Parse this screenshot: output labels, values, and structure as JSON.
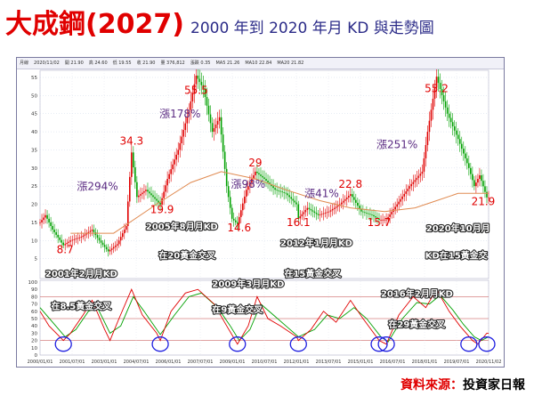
{
  "header": {
    "title": "大成鋼(2027)",
    "subtitle": "2000 年到 2020 年月 KD 與走勢圖"
  },
  "toolbar": {
    "items": [
      "月線",
      "2020/11/02",
      "開 21.90",
      "高 24.60",
      "低 19.55",
      "收 21.90",
      "量 376,812",
      "漲跌 0.35",
      "MA5 21.26",
      "MA10 22.84",
      "MA20 21.82"
    ]
  },
  "colors": {
    "title": "#e00000",
    "subtitle": "#2b2b88",
    "up_candle": "#e00000",
    "down_candle": "#00a000",
    "ma_line": "#e08a50",
    "k_line": "#e00000",
    "d_line": "#00a000",
    "annotation_price": "#e00000",
    "annotation_pct": "#5a2a82",
    "annotation_event": "#ffffff",
    "circle": "#2020e0"
  },
  "chart_data": {
    "type": "line",
    "title": "大成鋼(2027) 2000 年到 2020 年月 KD 與走勢圖",
    "price_axis": {
      "ylim": [
        0,
        55
      ],
      "ticks": [
        "55",
        "50",
        "45",
        "40",
        "35",
        "30",
        "25",
        "20",
        "15",
        "10",
        "5"
      ]
    },
    "kd_axis": {
      "ylim": [
        0,
        100
      ],
      "ticks": [
        "100",
        "90",
        "80",
        "70",
        "60",
        "50",
        "40",
        "30",
        "20",
        "10",
        "0"
      ],
      "reference_lines": [
        80,
        50,
        20
      ]
    },
    "x_ticks": [
      "2000/01/01",
      "2001/07/01",
      "2003/01/01",
      "2004/07/01",
      "2006/01/01",
      "2007/07/01",
      "2009/01/01",
      "2010/07/01",
      "2012/01/01",
      "2013/07/01",
      "2015/01/01",
      "2016/07/01",
      "2018/01/01",
      "2019/07/01",
      "2020/11/02"
    ],
    "x_range": [
      "2000-01",
      "2020-11"
    ],
    "price_path": [
      [
        "2000-01",
        15
      ],
      [
        "2000-04",
        17
      ],
      [
        "2000-08",
        13
      ],
      [
        "2001-02",
        8.7
      ],
      [
        "2001-06",
        10
      ],
      [
        "2001-12",
        11
      ],
      [
        "2002-06",
        13
      ],
      [
        "2002-10",
        10
      ],
      [
        "2003-03",
        7
      ],
      [
        "2003-08",
        9
      ],
      [
        "2004-01",
        14
      ],
      [
        "2004-04",
        34.3
      ],
      [
        "2004-07",
        22
      ],
      [
        "2004-12",
        24
      ],
      [
        "2005-06",
        21
      ],
      [
        "2005-08",
        19.9
      ],
      [
        "2005-12",
        27
      ],
      [
        "2006-06",
        35
      ],
      [
        "2006-12",
        46
      ],
      [
        "2007-04",
        55.5
      ],
      [
        "2007-08",
        52
      ],
      [
        "2008-01",
        40
      ],
      [
        "2008-05",
        44
      ],
      [
        "2008-09",
        25
      ],
      [
        "2008-12",
        16
      ],
      [
        "2009-03",
        14.6
      ],
      [
        "2009-08",
        24
      ],
      [
        "2010-01",
        29
      ],
      [
        "2010-06",
        27
      ],
      [
        "2010-12",
        24
      ],
      [
        "2011-06",
        23
      ],
      [
        "2011-12",
        20
      ],
      [
        "2012-01",
        16.1
      ],
      [
        "2012-06",
        19
      ],
      [
        "2012-12",
        17
      ],
      [
        "2013-06",
        18
      ],
      [
        "2013-12",
        20
      ],
      [
        "2014-06",
        22.8
      ],
      [
        "2014-12",
        18
      ],
      [
        "2015-06",
        17
      ],
      [
        "2015-10",
        15.7
      ],
      [
        "2016-02",
        15.8
      ],
      [
        "2016-08",
        20
      ],
      [
        "2017-03",
        25
      ],
      [
        "2017-10",
        29
      ],
      [
        "2018-01",
        40
      ],
      [
        "2018-06",
        55.2
      ],
      [
        "2018-12",
        45
      ],
      [
        "2019-06",
        38
      ],
      [
        "2019-12",
        30
      ],
      [
        "2020-03",
        25
      ],
      [
        "2020-06",
        28
      ],
      [
        "2020-10",
        21.9
      ],
      [
        "2020-11",
        21.9
      ]
    ],
    "ma_path": [
      [
        "2001-06",
        12
      ],
      [
        "2003-06",
        12
      ],
      [
        "2005-06",
        20
      ],
      [
        "2007-01",
        26
      ],
      [
        "2008-06",
        29
      ],
      [
        "2010-01",
        27
      ],
      [
        "2011-06",
        24
      ],
      [
        "2013-01",
        21
      ],
      [
        "2014-06",
        19
      ],
      [
        "2016-01",
        18
      ],
      [
        "2017-06",
        19
      ],
      [
        "2018-06",
        21
      ],
      [
        "2019-06",
        23
      ],
      [
        "2020-11",
        23
      ]
    ],
    "k_path": [
      [
        "2000-01",
        60
      ],
      [
        "2000-06",
        40
      ],
      [
        "2001-02",
        20
      ],
      [
        "2001-06",
        30
      ],
      [
        "2002-01",
        55
      ],
      [
        "2002-06",
        75
      ],
      [
        "2003-01",
        35
      ],
      [
        "2003-04",
        20
      ],
      [
        "2003-09",
        50
      ],
      [
        "2004-04",
        90
      ],
      [
        "2004-10",
        55
      ],
      [
        "2005-06",
        30
      ],
      [
        "2005-08",
        20
      ],
      [
        "2006-02",
        60
      ],
      [
        "2006-10",
        85
      ],
      [
        "2007-05",
        90
      ],
      [
        "2008-02",
        70
      ],
      [
        "2008-09",
        40
      ],
      [
        "2009-03",
        15
      ],
      [
        "2009-09",
        40
      ],
      [
        "2010-02",
        80
      ],
      [
        "2010-08",
        50
      ],
      [
        "2011-03",
        40
      ],
      [
        "2011-12",
        25
      ],
      [
        "2012-01",
        20
      ],
      [
        "2012-08",
        35
      ],
      [
        "2013-03",
        60
      ],
      [
        "2013-10",
        45
      ],
      [
        "2014-06",
        75
      ],
      [
        "2015-01",
        50
      ],
      [
        "2015-10",
        20
      ],
      [
        "2016-02",
        15
      ],
      [
        "2016-09",
        55
      ],
      [
        "2017-05",
        80
      ],
      [
        "2017-12",
        65
      ],
      [
        "2018-06",
        90
      ],
      [
        "2019-01",
        60
      ],
      [
        "2019-07",
        40
      ],
      [
        "2020-02",
        20
      ],
      [
        "2020-05",
        15
      ],
      [
        "2020-10",
        30
      ],
      [
        "2020-11",
        30
      ]
    ],
    "d_path": [
      [
        "2000-01",
        65
      ],
      [
        "2000-08",
        45
      ],
      [
        "2001-03",
        25
      ],
      [
        "2001-09",
        35
      ],
      [
        "2002-04",
        60
      ],
      [
        "2002-09",
        65
      ],
      [
        "2003-04",
        30
      ],
      [
        "2003-10",
        40
      ],
      [
        "2004-05",
        80
      ],
      [
        "2004-11",
        60
      ],
      [
        "2005-08",
        28
      ],
      [
        "2006-04",
        55
      ],
      [
        "2006-12",
        80
      ],
      [
        "2007-07",
        85
      ],
      [
        "2008-04",
        65
      ],
      [
        "2008-11",
        40
      ],
      [
        "2009-04",
        20
      ],
      [
        "2009-10",
        35
      ],
      [
        "2010-04",
        70
      ],
      [
        "2010-11",
        55
      ],
      [
        "2011-06",
        40
      ],
      [
        "2012-01",
        25
      ],
      [
        "2012-10",
        35
      ],
      [
        "2013-05",
        55
      ],
      [
        "2013-12",
        50
      ],
      [
        "2014-08",
        65
      ],
      [
        "2015-03",
        50
      ],
      [
        "2015-11",
        25
      ],
      [
        "2016-03",
        18
      ],
      [
        "2016-11",
        50
      ],
      [
        "2017-07",
        72
      ],
      [
        "2018-02",
        70
      ],
      [
        "2018-08",
        82
      ],
      [
        "2019-03",
        62
      ],
      [
        "2019-09",
        42
      ],
      [
        "2020-03",
        25
      ],
      [
        "2020-07",
        20
      ],
      [
        "2020-11",
        25
      ]
    ],
    "circles": [
      "2001-02",
      "2005-08",
      "2009-03",
      "2012-01",
      "2015-10",
      "2016-02",
      "2019-12",
      "2020-10"
    ],
    "price_labels": [
      {
        "text": "8.7",
        "x": "2001-03",
        "y": 6.5
      },
      {
        "text": "34.3",
        "x": "2004-04",
        "y": 36.5
      },
      {
        "text": "19.9",
        "x": "2005-09",
        "y": 17.5
      },
      {
        "text": "55.5",
        "x": "2007-04",
        "y": 50.5
      },
      {
        "text": "14.6",
        "x": "2009-04",
        "y": 12.5
      },
      {
        "text": "29",
        "x": "2010-01",
        "y": 30.5
      },
      {
        "text": "16.1",
        "x": "2012-01",
        "y": 14
      },
      {
        "text": "22.8",
        "x": "2014-06",
        "y": 24.5
      },
      {
        "text": "15.7",
        "x": "2015-10",
        "y": 14
      },
      {
        "text": "55.2",
        "x": "2018-06",
        "y": 51
      },
      {
        "text": "21.9",
        "x": "2020-08",
        "y": 19.8
      }
    ],
    "pct_labels": [
      {
        "text": "漲294%",
        "x": "2002-09",
        "y": 24
      },
      {
        "text": "漲178%",
        "x": "2006-07",
        "y": 44
      },
      {
        "text": "漲98%",
        "x": "2009-09",
        "y": 24.5
      },
      {
        "text": "漲41%",
        "x": "2013-02",
        "y": 22
      },
      {
        "text": "漲251%",
        "x": "2016-08",
        "y": 35.5
      }
    ],
    "event_labels": [
      {
        "text": "2005年8月月KD",
        "x": "2006-08",
        "y": 13
      },
      {
        "text": "2012年1月月KD",
        "x": "2012-11",
        "y": 8.5
      },
      {
        "text": "2020年10月月",
        "x": "2019-06",
        "y": 12.5
      },
      {
        "text": "在20黃金交叉",
        "x": "2006-11",
        "y": 5
      },
      {
        "text": "KD在15黃金交",
        "x": "2019-05",
        "y": 5
      },
      {
        "text": "2001年2月月KD",
        "x": "2001-12",
        "y": 0
      },
      {
        "text": "在15黃金交叉",
        "x": "2012-09",
        "y": 0
      }
    ],
    "kd_event_labels": [
      {
        "text": "2009年3月月KD",
        "x": "2009-09",
        "y": 93
      },
      {
        "text": "2016年2月月KD",
        "x": "2017-07",
        "y": 80
      },
      {
        "text": "在8.5黃金交叉",
        "x": "2001-12",
        "y": 63
      },
      {
        "text": "在9黃金交叉",
        "x": "2009-03",
        "y": 58
      },
      {
        "text": "在29黃金交叉",
        "x": "2017-07",
        "y": 38
      }
    ]
  },
  "credit": {
    "label": "資料來源：",
    "source": "投資家日報"
  }
}
